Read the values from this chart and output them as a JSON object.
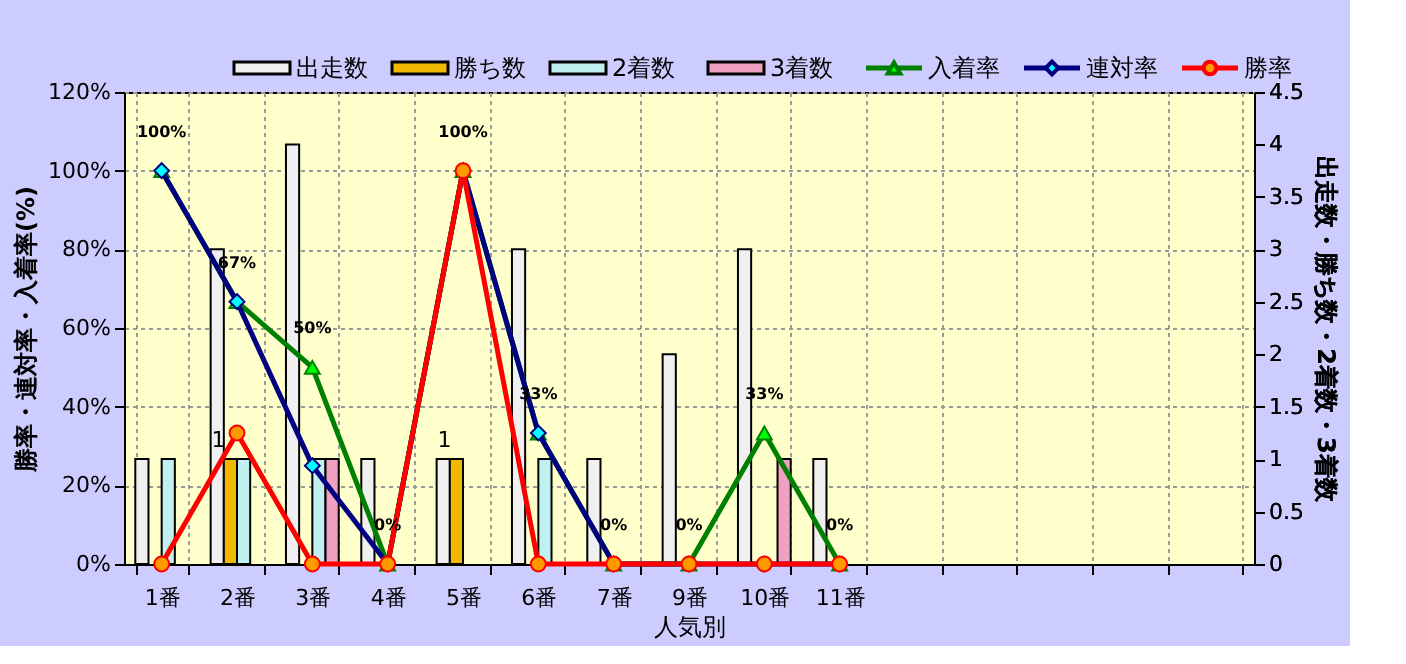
{
  "chart_data": {
    "type": "bar",
    "xlabel": "人気別",
    "ylabel": "勝率・連対率・入着率(%)",
    "y2label": "出走数・勝ち数・2着数・3着数",
    "categories": [
      "1番",
      "2番",
      "3番",
      "4番",
      "5番",
      "6番",
      "7番",
      "9番",
      "10番",
      "11番",
      null,
      null,
      null,
      null,
      null
    ],
    "series": [
      {
        "name": "出走数",
        "axis": "y2",
        "color": "#f0f0f0",
        "values": [
          1,
          3,
          4,
          1,
          1,
          3,
          1,
          2,
          3,
          1,
          null,
          null,
          null,
          null,
          null
        ]
      },
      {
        "name": "勝ち数",
        "axis": "y2",
        "color": "#f0b800",
        "values": [
          0,
          1,
          0,
          0,
          1,
          0,
          0,
          0,
          0,
          0,
          null,
          null,
          null,
          null,
          null
        ],
        "value_labels": [
          null,
          "1",
          null,
          null,
          "1",
          null,
          null,
          null,
          null,
          null,
          null,
          null,
          null,
          null,
          null
        ]
      },
      {
        "name": "2着数",
        "axis": "y2",
        "color": "#c0f0f0",
        "values": [
          1,
          1,
          1,
          0,
          0,
          1,
          0,
          0,
          0,
          0,
          null,
          null,
          null,
          null,
          null
        ]
      },
      {
        "name": "3着数",
        "axis": "y2",
        "color": "#f0a0c0",
        "values": [
          0,
          0,
          1,
          0,
          0,
          0,
          0,
          0,
          1,
          0,
          null,
          null,
          null,
          null,
          null
        ]
      },
      {
        "name": "入着率",
        "type": "line",
        "color": "#008000",
        "marker": "triangle",
        "values": [
          100,
          66.7,
          50,
          0,
          100,
          33.3,
          0,
          0,
          33.3,
          0,
          null,
          null,
          null,
          null,
          null
        ],
        "value_labels": [
          "100%",
          "67%",
          "50%",
          "0%",
          "100%",
          "33%",
          "0%",
          "0%",
          "33%",
          "0%",
          null,
          null,
          null,
          null,
          null
        ]
      },
      {
        "name": "連対率",
        "type": "line",
        "color": "#000080",
        "marker": "diamond",
        "values": [
          100,
          66.7,
          25,
          0,
          100,
          33.3,
          0,
          0,
          0,
          0,
          null,
          null,
          null,
          null,
          null
        ]
      },
      {
        "name": "勝率",
        "type": "line",
        "color": "#ff0000",
        "marker": "circle",
        "values": [
          0,
          33.3,
          0,
          0,
          100,
          0,
          0,
          0,
          0,
          0,
          null,
          null,
          null,
          null,
          null
        ]
      }
    ],
    "ylim": [
      0,
      120
    ],
    "yticks": [
      {
        "value": 0,
        "label": "0%"
      },
      {
        "value": 20,
        "label": "20%"
      },
      {
        "value": 40,
        "label": "40%"
      },
      {
        "value": 60,
        "label": "60%"
      },
      {
        "value": 80,
        "label": "80%"
      },
      {
        "value": 100,
        "label": "100%"
      },
      {
        "value": 120,
        "label": "120%"
      }
    ],
    "y2lim": [
      0,
      4.5
    ],
    "y2ticks": [
      0,
      0.5,
      1,
      1.5,
      2,
      2.5,
      3,
      3.5,
      4,
      4.5
    ],
    "grid": true,
    "legend": "top"
  }
}
